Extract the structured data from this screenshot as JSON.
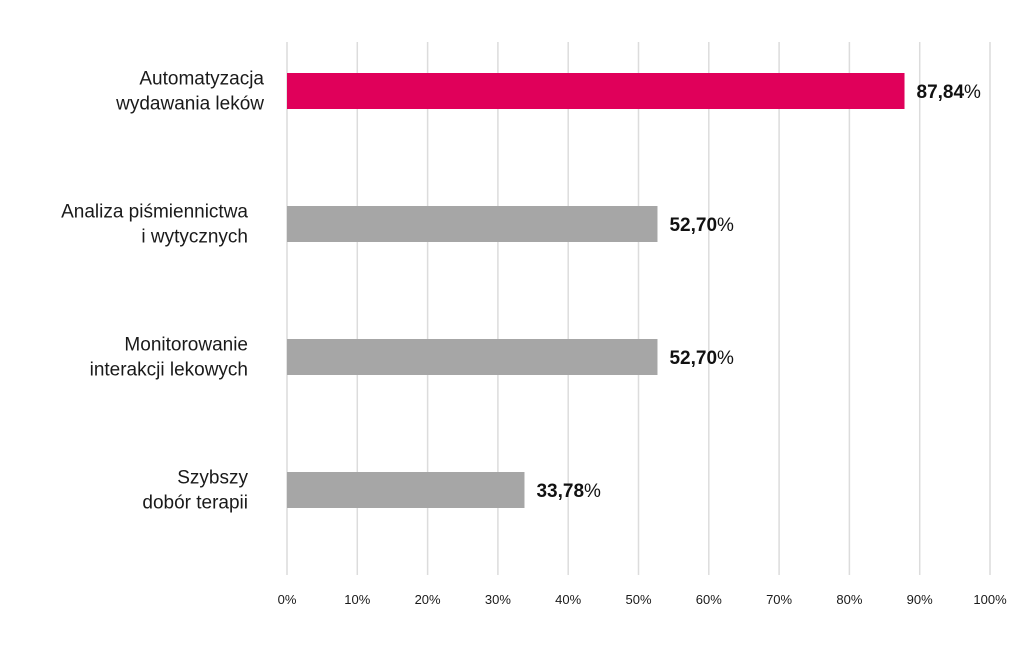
{
  "chart_data": {
    "type": "bar",
    "orientation": "horizontal",
    "categories": [
      [
        "Automatyzacja",
        "wydawania leków"
      ],
      [
        "Analiza piśmiennictwa",
        "i wytycznych"
      ],
      [
        "Monitorowanie",
        "interakcji lekowych"
      ],
      [
        "Szybszy",
        "dobór terapii"
      ]
    ],
    "values": [
      87.84,
      52.7,
      52.7,
      33.78
    ],
    "value_labels": [
      {
        "number": "87,84",
        "suffix": "%"
      },
      {
        "number": "52,70",
        "suffix": "%"
      },
      {
        "number": "52,70",
        "suffix": "%"
      },
      {
        "number": "33,78",
        "suffix": "%"
      }
    ],
    "bar_colors": [
      "#e0005a",
      "#a6a6a6",
      "#a6a6a6",
      "#a6a6a6"
    ],
    "xlim": [
      0,
      100
    ],
    "x_ticks": [
      "0%",
      "10%",
      "20%",
      "30%",
      "40%",
      "50%",
      "60%",
      "70%",
      "80%",
      "90%",
      "100%"
    ],
    "grid": "vertical",
    "grid_color": "#dcdcdc"
  }
}
